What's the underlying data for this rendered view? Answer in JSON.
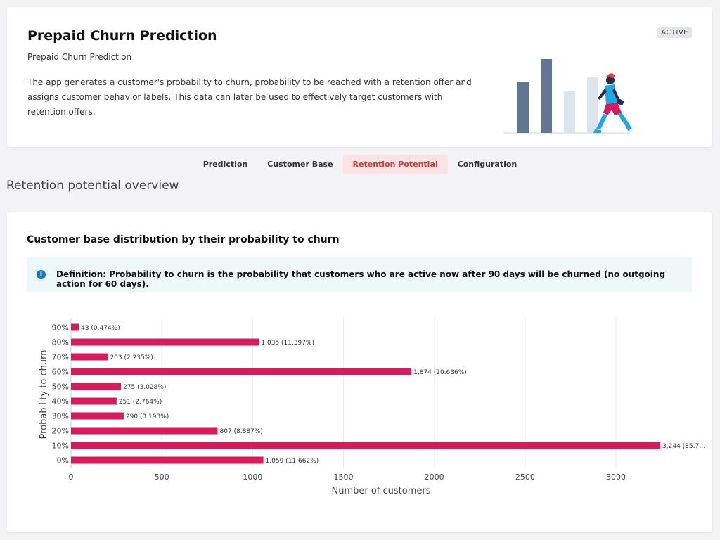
{
  "header": {
    "title": "Prepaid Churn Prediction",
    "subtitle": "Prepaid Churn Prediction",
    "description": "The app generates a customer's probability to churn, probability to be reached with a retention offer and assigns customer behavior labels. This data can later be used to effectively target customers with retention offers.",
    "badge": "ACTIVE"
  },
  "tabs": [
    {
      "label": "Prediction",
      "active": false
    },
    {
      "label": "Customer Base",
      "active": false
    },
    {
      "label": "Retention Potential",
      "active": true
    },
    {
      "label": "Configuration",
      "active": false
    }
  ],
  "section_title": "Retention potential overview",
  "card": {
    "title": "Customer base distribution by their probability to churn",
    "info_icon": "info-circle-icon",
    "definition": "Definition: Probability to churn is the probability that customers who are active now after 90 days will be churned (no outgoing action for 60 days)."
  },
  "colors": {
    "bar": "#d81b5a",
    "active_tab_bg": "#fbe3e5",
    "active_tab_text": "#d13a2a",
    "info_bg": "#eef8f9",
    "info_icon": "#1677c8"
  },
  "chart_data": {
    "type": "bar",
    "orientation": "horizontal",
    "categories": [
      "0%",
      "10%",
      "20%",
      "30%",
      "40%",
      "50%",
      "60%",
      "70%",
      "80%",
      "90%"
    ],
    "values": [
      1059,
      3244,
      807,
      290,
      251,
      275,
      1874,
      203,
      1035,
      43
    ],
    "labels": [
      "1,059 (11.662%)",
      "3,244 (35.7…",
      "807 (8.887%)",
      "290 (3.193%)",
      "251 (2.764%)",
      "275 (3.028%)",
      "1,874 (20.636%)",
      "203 (2.235%)",
      "1,035 (11.397%)",
      "43 (0.474%)"
    ],
    "xlabel": "Number of customers",
    "ylabel": "Probability to churn",
    "xlim": [
      0,
      3420
    ],
    "xticks": [
      0,
      500,
      1000,
      1500,
      2000,
      2500,
      3000
    ],
    "grid": true
  }
}
